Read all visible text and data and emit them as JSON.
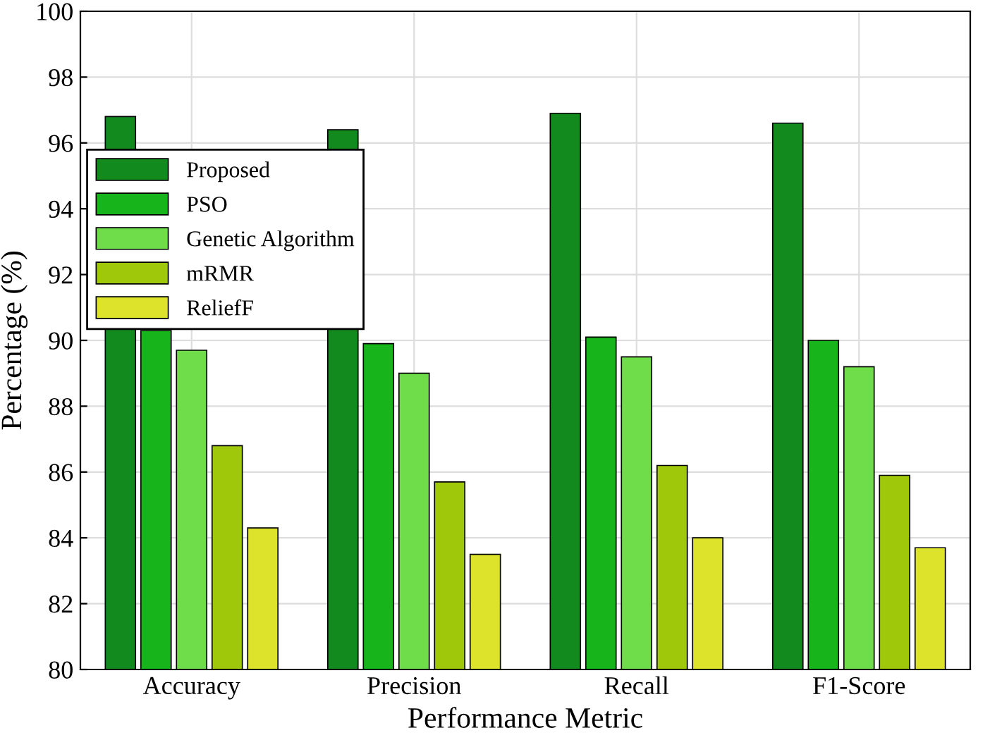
{
  "chart_data": {
    "type": "bar",
    "xlabel": "Performance Metric",
    "ylabel": "Percentage (%)",
    "categories": [
      "Accuracy",
      "Precision",
      "Recall",
      "F1-Score"
    ],
    "series": [
      {
        "name": "Proposed",
        "color": "#138a1e",
        "values": [
          96.8,
          96.4,
          96.9,
          96.6
        ]
      },
      {
        "name": "PSO",
        "color": "#17b51b",
        "values": [
          90.3,
          89.9,
          90.1,
          90.0
        ]
      },
      {
        "name": "Genetic Algorithm",
        "color": "#6fdc4a",
        "values": [
          89.7,
          89.0,
          89.5,
          89.2
        ]
      },
      {
        "name": "mRMR",
        "color": "#a0c80a",
        "values": [
          86.8,
          85.7,
          86.2,
          85.9
        ]
      },
      {
        "name": "ReliefF",
        "color": "#dde22a",
        "values": [
          84.3,
          83.5,
          84.0,
          83.7
        ]
      }
    ],
    "ylim": [
      80,
      100
    ],
    "yticks": [
      80,
      82,
      84,
      86,
      88,
      90,
      92,
      94,
      96,
      98,
      100
    ],
    "grid": true,
    "legend": "top left"
  }
}
